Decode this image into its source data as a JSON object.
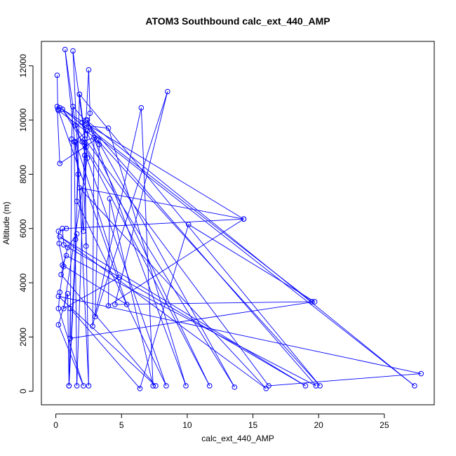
{
  "chart_data": {
    "type": "line",
    "title": "ATOM3 Southbound calc_ext_440_AMP",
    "xlabel": "calc_ext_440_AMP",
    "ylabel": "Altitude (m)",
    "xlim": [
      -1.1,
      28.8
    ],
    "ylim": [
      -500,
      12900
    ],
    "x_ticks": [
      0,
      5,
      10,
      15,
      20,
      25
    ],
    "y_ticks": [
      0,
      2000,
      4000,
      6000,
      8000,
      10000,
      12000
    ],
    "grid": false,
    "legend": "none",
    "series": [
      {
        "color": "#0000ff",
        "points": [
          [
            0.1,
            11650
          ],
          [
            0.15,
            10400
          ],
          [
            0.3,
            10450
          ],
          [
            14.3,
            6350
          ],
          [
            0.8,
            6000
          ],
          [
            0.2,
            5900
          ],
          [
            0.25,
            5450
          ],
          [
            0.6,
            4600
          ],
          [
            0.3,
            3650
          ],
          [
            0.2,
            3050
          ],
          [
            2.1,
            200
          ],
          [
            0.2,
            2450
          ],
          [
            0.9,
            3600
          ],
          [
            1.0,
            200
          ],
          [
            1.1,
            3050
          ],
          [
            6.4,
            100
          ],
          [
            10.1,
            6150
          ],
          [
            19.7,
            3300
          ],
          [
            1.1,
            1950
          ],
          [
            1.2,
            9300
          ],
          [
            1.3,
            10500
          ],
          [
            19.8,
            200
          ],
          [
            0.8,
            5000
          ],
          [
            0.5,
            4650
          ],
          [
            5.4,
            3200
          ],
          [
            0.2,
            10350
          ],
          [
            3.1,
            9300
          ],
          [
            0.3,
            8400
          ],
          [
            0.1,
            10500
          ],
          [
            0.5,
            10400
          ],
          [
            16.2,
            200
          ],
          [
            27.8,
            650
          ],
          [
            0.2,
            3500
          ],
          [
            7.6,
            200
          ],
          [
            0.4,
            4300
          ],
          [
            0.9,
            5300
          ],
          [
            1.6,
            5800
          ],
          [
            1.0,
            200
          ],
          [
            1.5,
            5600
          ],
          [
            1.7,
            8000
          ],
          [
            0.7,
            12600
          ],
          [
            1.5,
            9800
          ],
          [
            8.4,
            200
          ],
          [
            1.6,
            7000
          ],
          [
            1.8,
            10950
          ],
          [
            2.2,
            9300
          ],
          [
            1.6,
            200
          ],
          [
            1.4,
            9200
          ],
          [
            2.4,
            9600
          ],
          [
            2.1,
            5900
          ],
          [
            1.5,
            9200
          ],
          [
            4.8,
            4200
          ],
          [
            0.6,
            3050
          ],
          [
            2.4,
            8600
          ],
          [
            1.8,
            10950
          ],
          [
            20.1,
            200
          ],
          [
            3.2,
            9250
          ],
          [
            13.6,
            150
          ],
          [
            0.5,
            10400
          ],
          [
            27.3,
            200
          ],
          [
            2.3,
            10000
          ],
          [
            2.5,
            11850
          ],
          [
            2.6,
            10250
          ],
          [
            2.3,
            9000
          ],
          [
            1.3,
            12550
          ],
          [
            2.5,
            200
          ],
          [
            2.2,
            8700
          ],
          [
            2.3,
            5350
          ],
          [
            2.2,
            9800
          ],
          [
            4.0,
            9700
          ],
          [
            9.9,
            200
          ],
          [
            2.4,
            10000
          ],
          [
            3.3,
            9100
          ],
          [
            3.0,
            2750
          ],
          [
            8.5,
            11050
          ],
          [
            4.5,
            3200
          ],
          [
            19.5,
            3300
          ],
          [
            2.0,
            9900
          ],
          [
            11.7,
            200
          ],
          [
            2.0,
            9200
          ],
          [
            2.9,
            9350
          ],
          [
            2.8,
            2400
          ],
          [
            6.5,
            10450
          ],
          [
            7.4,
            200
          ],
          [
            4.1,
            7100
          ],
          [
            4.0,
            3150
          ],
          [
            14.3,
            6350
          ],
          [
            1.8,
            7500
          ],
          [
            16.0,
            100
          ],
          [
            0.3,
            5700
          ],
          [
            19.0,
            200
          ],
          [
            0.6,
            5400
          ],
          [
            0.5,
            6000
          ]
        ]
      }
    ]
  }
}
